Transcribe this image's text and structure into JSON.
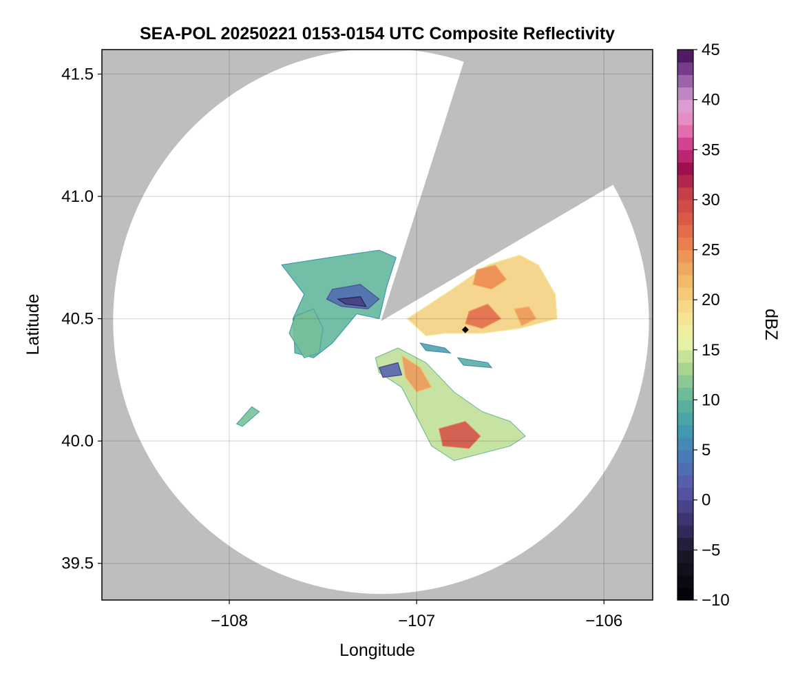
{
  "chart_data": {
    "type": "heatmap",
    "title": "SEA-POL 20250221 0153-0154 UTC Composite Reflectivity",
    "xlabel": "Longitude",
    "ylabel": "Latitude",
    "xlim": [
      -108.68,
      -105.74
    ],
    "ylim": [
      39.35,
      41.6
    ],
    "xticks": [
      -108,
      -107,
      -106
    ],
    "xtick_labels": [
      "−108",
      "−107",
      "−106"
    ],
    "yticks": [
      39.5,
      40.0,
      40.5,
      41.0,
      41.5
    ],
    "ytick_labels": [
      "39.5",
      "40.0",
      "40.5",
      "41.0",
      "41.5"
    ],
    "grid": true,
    "background_color": "#bebebe",
    "radar": {
      "center_lon": -107.19,
      "center_lat": 40.49,
      "coverage_radius_lon": 1.43,
      "coverage_radius_lat": 1.115,
      "blocked_sector_deg_from_north": [
        18,
        60
      ],
      "marker": {
        "lon": -106.74,
        "lat": 40.455,
        "symbol": "diamond",
        "color": "#000000"
      }
    },
    "colorbar": {
      "label": "dBZ",
      "range": [
        -10,
        45
      ],
      "ticks": [
        -10,
        -5,
        0,
        5,
        10,
        15,
        20,
        25,
        30,
        35,
        40,
        45
      ],
      "tick_labels": [
        "−10",
        "−5",
        "0",
        "5",
        "10",
        "15",
        "20",
        "25",
        "30",
        "35",
        "40",
        "45"
      ],
      "colormap_stops": [
        {
          "value": -10,
          "color": "#000004"
        },
        {
          "value": -5,
          "color": "#1c1a2c"
        },
        {
          "value": -2,
          "color": "#3b3470"
        },
        {
          "value": 1,
          "color": "#5a55a8"
        },
        {
          "value": 4,
          "color": "#4a78b8"
        },
        {
          "value": 7,
          "color": "#3f9ab0"
        },
        {
          "value": 10,
          "color": "#5fb59a"
        },
        {
          "value": 13,
          "color": "#a6d38e"
        },
        {
          "value": 16,
          "color": "#eef6a8"
        },
        {
          "value": 19,
          "color": "#f6dc8a"
        },
        {
          "value": 22,
          "color": "#f2b866"
        },
        {
          "value": 25,
          "color": "#ec8a52"
        },
        {
          "value": 28,
          "color": "#dd5a48"
        },
        {
          "value": 31,
          "color": "#c33a48"
        },
        {
          "value": 33,
          "color": "#9e0d50"
        },
        {
          "value": 35,
          "color": "#cb2f82"
        },
        {
          "value": 37,
          "color": "#e472b0"
        },
        {
          "value": 39,
          "color": "#e6a4d4"
        },
        {
          "value": 41,
          "color": "#b580c0"
        },
        {
          "value": 43,
          "color": "#7a3e8e"
        },
        {
          "value": 45,
          "color": "#3f0a52"
        }
      ]
    },
    "echo_regions": [
      {
        "name": "north-west band",
        "dbz": 10,
        "points": [
          [
            -107.72,
            40.72
          ],
          [
            -107.55,
            40.74
          ],
          [
            -107.38,
            40.76
          ],
          [
            -107.2,
            40.78
          ],
          [
            -107.11,
            40.75
          ],
          [
            -107.16,
            40.63
          ],
          [
            -107.2,
            40.5
          ],
          [
            -107.32,
            40.52
          ],
          [
            -107.45,
            40.4
          ],
          [
            -107.55,
            40.34
          ],
          [
            -107.65,
            40.36
          ],
          [
            -107.66,
            40.5
          ],
          [
            -107.6,
            40.6
          ]
        ]
      },
      {
        "name": "north-west core",
        "dbz": 3,
        "points": [
          [
            -107.45,
            40.62
          ],
          [
            -107.3,
            40.64
          ],
          [
            -107.2,
            40.58
          ],
          [
            -107.26,
            40.54
          ],
          [
            -107.4,
            40.55
          ],
          [
            -107.48,
            40.58
          ]
        ]
      },
      {
        "name": "north-west intense",
        "dbz": -1,
        "points": [
          [
            -107.42,
            40.58
          ],
          [
            -107.3,
            40.59
          ],
          [
            -107.27,
            40.55
          ],
          [
            -107.38,
            40.56
          ]
        ]
      },
      {
        "name": "north-east band",
        "dbz": 20,
        "points": [
          [
            -107.05,
            40.5
          ],
          [
            -106.85,
            40.6
          ],
          [
            -106.62,
            40.72
          ],
          [
            -106.45,
            40.76
          ],
          [
            -106.35,
            40.72
          ],
          [
            -106.26,
            40.6
          ],
          [
            -106.25,
            40.5
          ],
          [
            -106.45,
            40.46
          ],
          [
            -106.65,
            40.44
          ],
          [
            -106.85,
            40.44
          ],
          [
            -106.95,
            40.43
          ]
        ]
      },
      {
        "name": "north-east core 1",
        "dbz": 25,
        "points": [
          [
            -106.68,
            40.7
          ],
          [
            -106.58,
            40.72
          ],
          [
            -106.52,
            40.66
          ],
          [
            -106.6,
            40.62
          ],
          [
            -106.7,
            40.64
          ]
        ]
      },
      {
        "name": "north-east core 2",
        "dbz": 27,
        "points": [
          [
            -106.72,
            40.53
          ],
          [
            -106.62,
            40.56
          ],
          [
            -106.55,
            40.5
          ],
          [
            -106.65,
            40.46
          ],
          [
            -106.74,
            40.48
          ]
        ]
      },
      {
        "name": "north-east core 3",
        "dbz": 24,
        "points": [
          [
            -106.48,
            40.54
          ],
          [
            -106.4,
            40.55
          ],
          [
            -106.36,
            40.5
          ],
          [
            -106.44,
            40.47
          ]
        ]
      },
      {
        "name": "south-east band",
        "dbz": 14,
        "points": [
          [
            -107.1,
            40.38
          ],
          [
            -106.95,
            40.32
          ],
          [
            -106.8,
            40.2
          ],
          [
            -106.65,
            40.12
          ],
          [
            -106.5,
            40.08
          ],
          [
            -106.42,
            40.02
          ],
          [
            -106.5,
            39.98
          ],
          [
            -106.65,
            39.95
          ],
          [
            -106.8,
            39.92
          ],
          [
            -106.92,
            39.98
          ],
          [
            -107.0,
            40.1
          ],
          [
            -107.08,
            40.22
          ],
          [
            -107.2,
            40.28
          ],
          [
            -107.22,
            40.34
          ]
        ]
      },
      {
        "name": "south-east core 1",
        "dbz": 24,
        "points": [
          [
            -107.08,
            40.35
          ],
          [
            -106.98,
            40.3
          ],
          [
            -106.92,
            40.22
          ],
          [
            -107.0,
            40.2
          ],
          [
            -107.06,
            40.26
          ]
        ]
      },
      {
        "name": "south-east core 2",
        "dbz": 29,
        "points": [
          [
            -106.88,
            40.05
          ],
          [
            -106.74,
            40.08
          ],
          [
            -106.66,
            40.02
          ],
          [
            -106.72,
            39.97
          ],
          [
            -106.86,
            39.98
          ]
        ]
      },
      {
        "name": "south-east dark",
        "dbz": 2,
        "points": [
          [
            -107.2,
            40.3
          ],
          [
            -107.1,
            40.32
          ],
          [
            -107.08,
            40.27
          ],
          [
            -107.18,
            40.26
          ]
        ]
      },
      {
        "name": "west blob",
        "dbz": 11,
        "points": [
          [
            -107.65,
            40.51
          ],
          [
            -107.55,
            40.54
          ],
          [
            -107.5,
            40.46
          ],
          [
            -107.52,
            40.36
          ],
          [
            -107.6,
            40.34
          ],
          [
            -107.68,
            40.44
          ]
        ]
      },
      {
        "name": "south-west speck",
        "dbz": 11,
        "points": [
          [
            -107.96,
            40.07
          ],
          [
            -107.88,
            40.14
          ],
          [
            -107.84,
            40.12
          ],
          [
            -107.93,
            40.06
          ]
        ]
      },
      {
        "name": "east arc 1",
        "dbz": 8,
        "points": [
          [
            -106.98,
            40.4
          ],
          [
            -106.85,
            40.38
          ],
          [
            -106.82,
            40.36
          ],
          [
            -106.95,
            40.37
          ]
        ]
      },
      {
        "name": "east arc 2",
        "dbz": 9,
        "points": [
          [
            -106.78,
            40.34
          ],
          [
            -106.62,
            40.32
          ],
          [
            -106.6,
            40.3
          ],
          [
            -106.75,
            40.31
          ]
        ]
      }
    ]
  }
}
